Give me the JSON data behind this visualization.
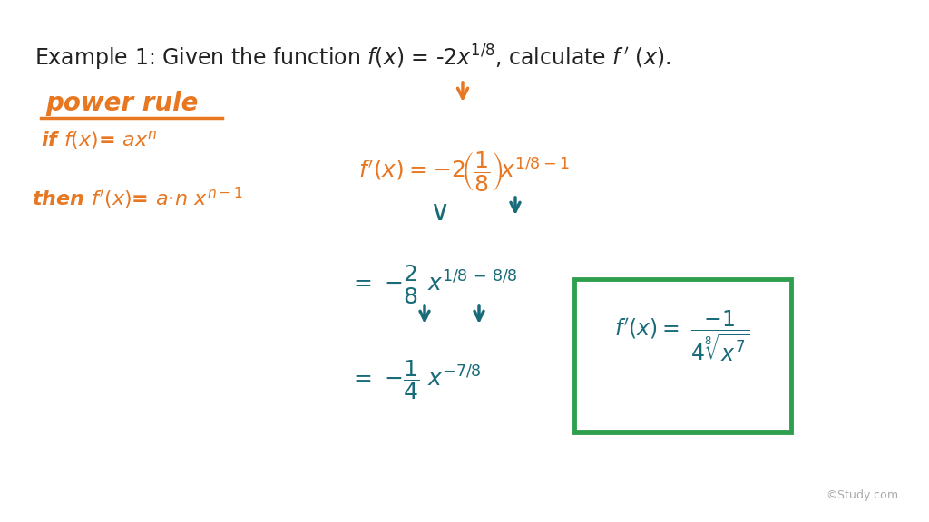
{
  "background_color": "#ffffff",
  "title_color": "#222222",
  "orange_color": "#e87722",
  "teal_color": "#1a6b7a",
  "green_box_color": "#2e9e4f",
  "figsize": [
    10.24,
    5.76
  ],
  "dpi": 100
}
